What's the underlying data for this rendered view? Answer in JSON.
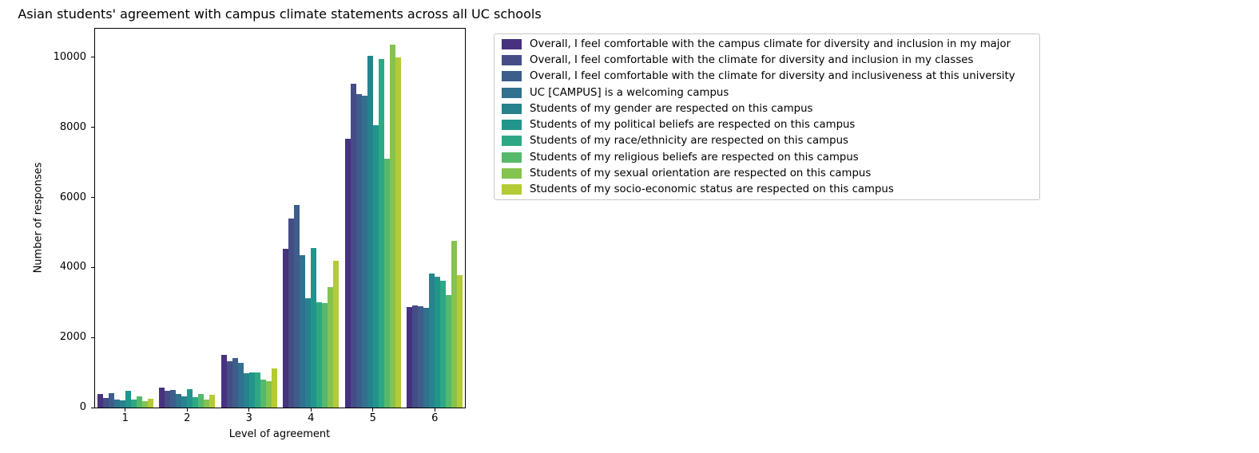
{
  "chart_data": {
    "type": "bar",
    "title": "Asian students' agreement with campus climate statements across all UC schools",
    "xlabel": "Level of agreement",
    "ylabel": "Number of responses",
    "categories": [
      "1",
      "2",
      "3",
      "4",
      "5",
      "6"
    ],
    "yticks": [
      0,
      2000,
      4000,
      6000,
      8000,
      10000
    ],
    "ylim": [
      0,
      10860
    ],
    "grid": false,
    "legend_position": "outside upper right",
    "series": [
      {
        "name": "Overall, I feel comfortable with the campus climate for diversity and inclusion in my major",
        "color": "#46327e",
        "values": [
          390,
          560,
          1500,
          4520,
          7680,
          2880
        ]
      },
      {
        "name": "Overall, I feel comfortable with the climate for diversity and inclusion in my classes",
        "color": "#454c86",
        "values": [
          270,
          470,
          1330,
          5390,
          9250,
          2920
        ]
      },
      {
        "name": "Overall, I feel comfortable with the climate for diversity and inclusiveness at this university",
        "color": "#3d5d8b",
        "values": [
          400,
          510,
          1420,
          5790,
          8950,
          2890
        ]
      },
      {
        "name": "UC [CAMPUS] is a welcoming campus",
        "color": "#31708e",
        "values": [
          230,
          390,
          1280,
          4350,
          8900,
          2840
        ]
      },
      {
        "name": "Students of my gender are respected on this campus",
        "color": "#27828e",
        "values": [
          200,
          310,
          980,
          3120,
          10050,
          3820
        ]
      },
      {
        "name": "Students of my political beliefs are respected on this campus",
        "color": "#21958b",
        "values": [
          470,
          530,
          1000,
          4560,
          8050,
          3730
        ]
      },
      {
        "name": "Students of my race/ethnicity are respected on this campus",
        "color": "#2ea884",
        "values": [
          230,
          290,
          1000,
          3010,
          9940,
          3610
        ]
      },
      {
        "name": "Students of my religious beliefs are respected on this campus",
        "color": "#55b96b",
        "values": [
          320,
          380,
          790,
          2990,
          7100,
          3200
        ]
      },
      {
        "name": "Students of my sexual orientation are respected on this campus",
        "color": "#84c34f",
        "values": [
          180,
          230,
          750,
          3440,
          10360,
          4750
        ]
      },
      {
        "name": "Students of my socio-economic status are respected on this campus",
        "color": "#b4ca36",
        "values": [
          260,
          360,
          1110,
          4180,
          10000,
          3770
        ]
      }
    ]
  }
}
